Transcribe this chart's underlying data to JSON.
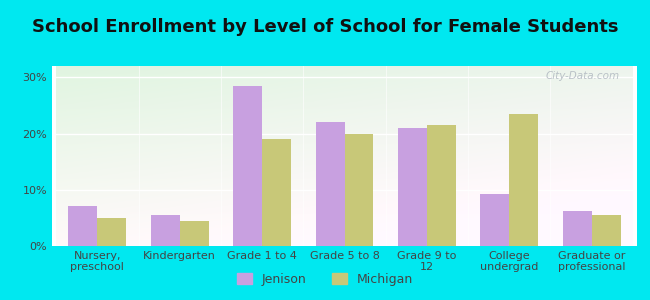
{
  "title": "School Enrollment by Level of School for Female Students",
  "categories": [
    "Nursery,\npreschool",
    "Kindergarten",
    "Grade 1 to 4",
    "Grade 5 to 8",
    "Grade 9 to\n12",
    "College\nundergrad",
    "Graduate or\nprofessional"
  ],
  "jenison": [
    7.2,
    5.5,
    28.5,
    22.0,
    21.0,
    9.2,
    6.2
  ],
  "michigan": [
    5.0,
    4.5,
    19.0,
    20.0,
    21.5,
    23.5,
    5.5
  ],
  "jenison_color": "#c8a0e0",
  "michigan_color": "#c8c878",
  "background_outer": "#00e8f0",
  "background_inner_top": "#e8f5e0",
  "background_inner_bottom": "#d0f0d8",
  "ylim": [
    0,
    32
  ],
  "yticks": [
    0,
    10,
    20,
    30
  ],
  "ytick_labels": [
    "0%",
    "10%",
    "20%",
    "30%"
  ],
  "legend_jenison": "Jenison",
  "legend_michigan": "Michigan",
  "watermark": "City-Data.com",
  "title_fontsize": 13,
  "tick_fontsize": 8,
  "legend_fontsize": 9
}
